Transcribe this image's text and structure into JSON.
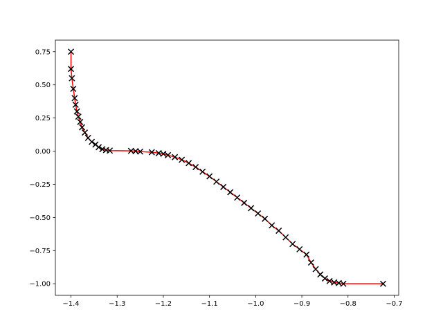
{
  "chart_data": {
    "type": "line",
    "x": [
      -1.4,
      -1.4,
      -1.398,
      -1.395,
      -1.392,
      -1.39,
      -1.387,
      -1.384,
      -1.38,
      -1.376,
      -1.37,
      -1.363,
      -1.355,
      -1.347,
      -1.34,
      -1.332,
      -1.324,
      -1.316,
      -1.27,
      -1.26,
      -1.25,
      -1.225,
      -1.21,
      -1.2,
      -1.19,
      -1.175,
      -1.16,
      -1.145,
      -1.13,
      -1.115,
      -1.1,
      -1.085,
      -1.07,
      -1.055,
      -1.04,
      -1.025,
      -1.01,
      -0.995,
      -0.98,
      -0.965,
      -0.95,
      -0.935,
      -0.92,
      -0.905,
      -0.89,
      -0.88,
      -0.87,
      -0.86,
      -0.85,
      -0.84,
      -0.83,
      -0.82,
      -0.81,
      -0.724
    ],
    "values": [
      0.75,
      0.62,
      0.55,
      0.47,
      0.4,
      0.35,
      0.3,
      0.26,
      0.22,
      0.18,
      0.14,
      0.1,
      0.07,
      0.05,
      0.03,
      0.015,
      0.008,
      0.004,
      0.002,
      0.0,
      -0.003,
      -0.008,
      -0.015,
      -0.02,
      -0.03,
      -0.045,
      -0.065,
      -0.09,
      -0.12,
      -0.155,
      -0.19,
      -0.23,
      -0.27,
      -0.31,
      -0.35,
      -0.39,
      -0.43,
      -0.47,
      -0.51,
      -0.56,
      -0.6,
      -0.65,
      -0.7,
      -0.74,
      -0.78,
      -0.84,
      -0.89,
      -0.93,
      -0.96,
      -0.98,
      -0.99,
      -0.995,
      -1.0,
      -1.0
    ],
    "color": "#ff0000",
    "marker_color": "#000000",
    "marker": "x",
    "xlim": [
      -1.4338,
      -0.6902
    ],
    "ylim": [
      -1.0875,
      0.8375
    ],
    "xticks": [
      {
        "value": -1.4,
        "label": "−1.4"
      },
      {
        "value": -1.3,
        "label": "−1.3"
      },
      {
        "value": -1.2,
        "label": "−1.2"
      },
      {
        "value": -1.1,
        "label": "−1.1"
      },
      {
        "value": -1.0,
        "label": "−1.0"
      },
      {
        "value": -0.9,
        "label": "−0.9"
      },
      {
        "value": -0.8,
        "label": "−0.8"
      },
      {
        "value": -0.7,
        "label": "−0.7"
      }
    ],
    "yticks": [
      {
        "value": -1.0,
        "label": "−1.00"
      },
      {
        "value": -0.75,
        "label": "−0.75"
      },
      {
        "value": -0.5,
        "label": "−0.50"
      },
      {
        "value": -0.25,
        "label": "−0.25"
      },
      {
        "value": 0,
        "label": "0.00"
      },
      {
        "value": 0.25,
        "label": "0.25"
      },
      {
        "value": 0.5,
        "label": "0.50"
      },
      0.75
    ],
    "grid": false
  }
}
